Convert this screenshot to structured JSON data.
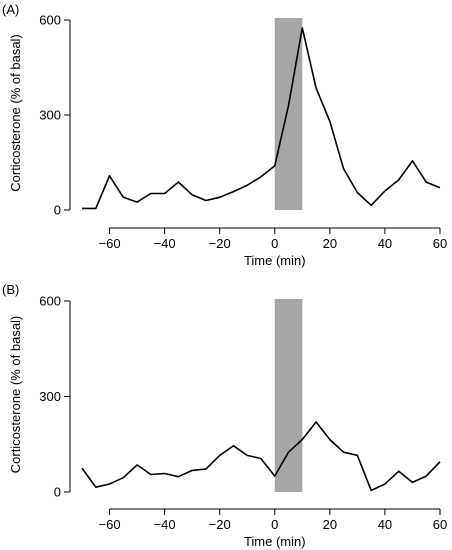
{
  "chart_data": [
    {
      "panel_label": "(A)",
      "type": "line",
      "xlabel": "Time (min)",
      "ylabel": "Corticosterone (% of basal)",
      "xlim": [
        -70,
        60
      ],
      "ylim": [
        0,
        600
      ],
      "xticks": [
        -60,
        -40,
        -20,
        0,
        20,
        40,
        60
      ],
      "yticks": [
        0,
        300,
        600
      ],
      "shaded_interval": [
        0,
        10
      ],
      "x": [
        -70,
        -65,
        -60,
        -55,
        -50,
        -45,
        -40,
        -35,
        -30,
        -25,
        -20,
        -15,
        -10,
        -5,
        0,
        5,
        10,
        15,
        20,
        25,
        30,
        35,
        40,
        45,
        50,
        55,
        60
      ],
      "values": [
        5,
        5,
        108,
        40,
        25,
        52,
        52,
        88,
        48,
        30,
        40,
        58,
        78,
        105,
        140,
        330,
        575,
        385,
        280,
        130,
        55,
        15,
        60,
        95,
        155,
        88,
        70
      ]
    },
    {
      "panel_label": "(B)",
      "type": "line",
      "xlabel": "Time (min)",
      "ylabel": "Corticosterone (% of basal)",
      "xlim": [
        -70,
        60
      ],
      "ylim": [
        0,
        600
      ],
      "xticks": [
        -60,
        -40,
        -20,
        0,
        20,
        40,
        60
      ],
      "yticks": [
        0,
        300,
        600
      ],
      "shaded_interval": [
        0,
        10
      ],
      "x": [
        -70,
        -65,
        -60,
        -55,
        -50,
        -45,
        -40,
        -35,
        -30,
        -25,
        -20,
        -15,
        -10,
        -5,
        0,
        5,
        10,
        15,
        20,
        25,
        30,
        35,
        40,
        45,
        50,
        55,
        60
      ],
      "values": [
        75,
        15,
        25,
        45,
        85,
        55,
        58,
        48,
        68,
        72,
        115,
        145,
        115,
        105,
        50,
        125,
        165,
        220,
        165,
        125,
        115,
        5,
        25,
        65,
        30,
        50,
        95
      ]
    }
  ]
}
